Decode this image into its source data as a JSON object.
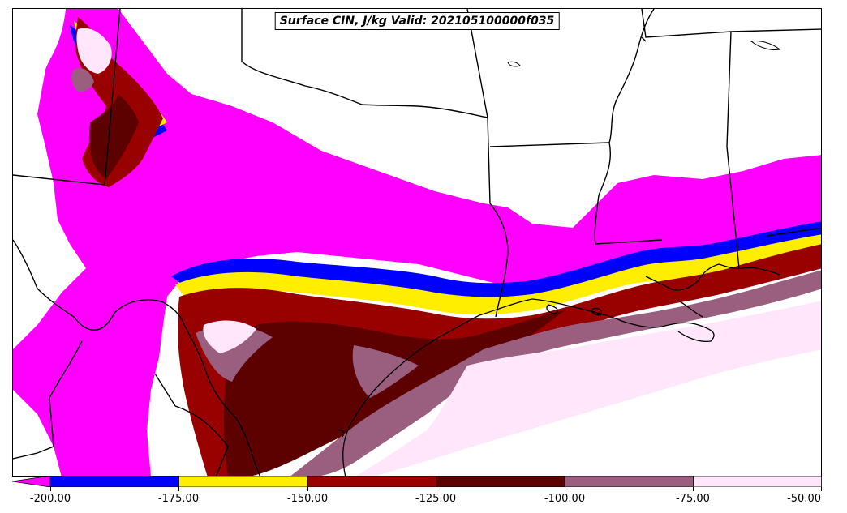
{
  "title": "Surface CIN, J/kg Valid: 202105100000f035",
  "colorbar": {
    "tick_labels": [
      "-200.00",
      "-175.00",
      "-150.00",
      "-125.00",
      "-100.00",
      "-75.00",
      "-50.00"
    ],
    "bins": [
      {
        "range": "< -200",
        "color": "#ff00ff"
      },
      {
        "range": "-200 to -175",
        "color": "#0000ff"
      },
      {
        "range": "-175 to -150",
        "color": "#ffee00"
      },
      {
        "range": "-150 to -125",
        "color": "#990000"
      },
      {
        "range": "-125 to -100",
        "color": "#5c0000"
      },
      {
        "range": "-100 to -75",
        "color": "#9a5f7f"
      },
      {
        "range": "-75 to -50",
        "color": "#ffe6fb"
      }
    ]
  },
  "map": {
    "region": "Southern Plains / Texas / Gulf Coast",
    "boundaries": [
      "state-lines",
      "country-border",
      "coastline"
    ]
  }
}
